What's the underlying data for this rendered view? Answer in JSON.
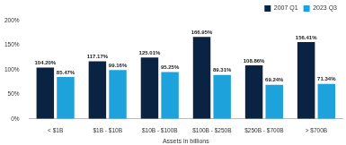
{
  "chart_data": {
    "type": "bar",
    "x_label": "Assets in billions",
    "categories": [
      "< $1B",
      "$1B - $10B",
      "$10B - $100B",
      "$100B - $250B",
      "$250B - $700B",
      "> $700B"
    ],
    "series": [
      {
        "name": "2007 Q1",
        "color": "#0b2343",
        "values": [
          104.2,
          117.17,
          125.01,
          166.95,
          108.86,
          156.41
        ],
        "value_labels": [
          "104.20%",
          "117.17%",
          "125.01%",
          "166.95%",
          "108.86%",
          "156.41%"
        ]
      },
      {
        "name": "2023 Q3",
        "color": "#1ea2dc",
        "values": [
          85.47,
          99.16,
          95.25,
          89.31,
          69.24,
          71.34
        ],
        "value_labels": [
          "85.47%",
          "99.16%",
          "95.25%",
          "89.31%",
          "69.24%",
          "71.34%"
        ]
      }
    ],
    "ylim": [
      0,
      200
    ],
    "yticks": [
      {
        "value": 0,
        "label": "0%"
      },
      {
        "value": 50,
        "label": "50%"
      },
      {
        "value": 100,
        "label": "100%"
      },
      {
        "value": 150,
        "label": "150%"
      },
      {
        "value": 200,
        "label": "200%"
      }
    ],
    "grid": false,
    "legend": "top-right",
    "data_labels": true
  }
}
